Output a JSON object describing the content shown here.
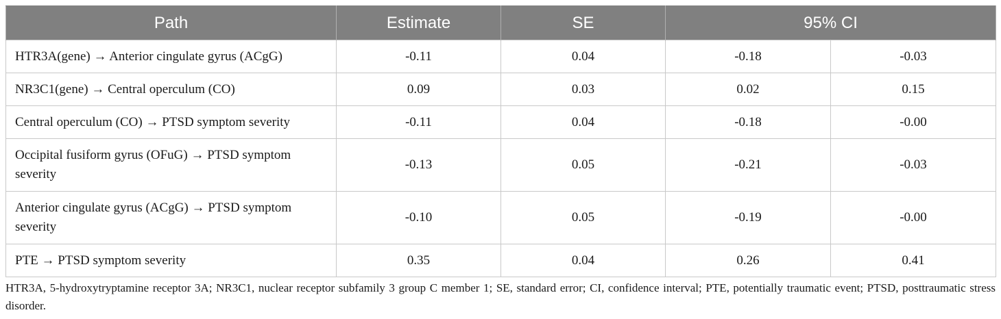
{
  "table": {
    "headers": {
      "path": "Path",
      "estimate": "Estimate",
      "se": "SE",
      "ci": "95% CI"
    },
    "rows": [
      {
        "path": "HTR3A(gene) → Anterior cingulate gyrus (ACgG)",
        "estimate": "-0.11",
        "se": "0.04",
        "ci_low": "-0.18",
        "ci_high": "-0.03"
      },
      {
        "path": "NR3C1(gene) → Central operculum (CO)",
        "estimate": "0.09",
        "se": "0.03",
        "ci_low": "0.02",
        "ci_high": "0.15"
      },
      {
        "path": "Central operculum (CO) → PTSD symptom severity",
        "estimate": "-0.11",
        "se": "0.04",
        "ci_low": "-0.18",
        "ci_high": "-0.00"
      },
      {
        "path": "Occipital fusiform gyrus (OFuG) → PTSD symptom severity",
        "estimate": "-0.13",
        "se": "0.05",
        "ci_low": "-0.21",
        "ci_high": "-0.03"
      },
      {
        "path": "Anterior cingulate gyrus (ACgG) → PTSD symptom severity",
        "estimate": "-0.10",
        "se": "0.05",
        "ci_low": "-0.19",
        "ci_high": "-0.00"
      },
      {
        "path": "PTE → PTSD symptom severity",
        "estimate": "0.35",
        "se": "0.04",
        "ci_low": "0.26",
        "ci_high": "0.41"
      }
    ]
  },
  "footnote": "HTR3A, 5-hydroxytryptamine receptor 3A; NR3C1, nuclear receptor subfamily 3 group C member 1; SE, standard error; CI, confidence interval; PTE, potentially traumatic event; PTSD, posttraumatic stress disorder.",
  "colors": {
    "header_bg": "#808080",
    "header_text": "#ffffff",
    "border": "#c8c8c8"
  }
}
